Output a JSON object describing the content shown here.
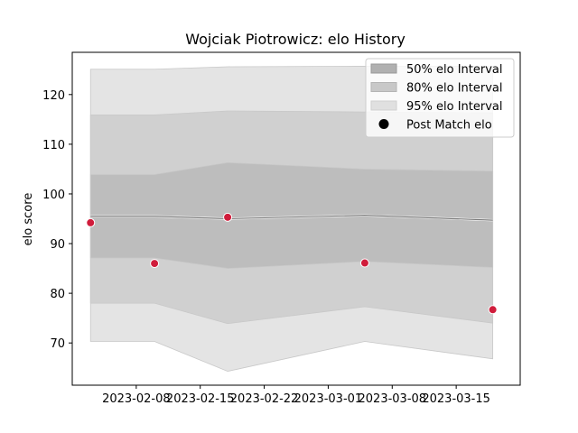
{
  "chart_data": {
    "type": "line",
    "title": "Wojciak Piotrowicz: elo History",
    "xlabel": "",
    "ylabel": "elo score",
    "x_ticks": [
      "2023-02-08",
      "2023-02-15",
      "2023-02-22",
      "2023-03-01",
      "2023-03-08",
      "2023-03-15"
    ],
    "y_ticks": [
      70,
      80,
      90,
      100,
      110,
      120
    ],
    "xlim": [
      "2023-02-01",
      "2023-03-22"
    ],
    "ylim": [
      61.5,
      128.5
    ],
    "x": [
      "2023-02-03",
      "2023-02-10",
      "2023-02-18",
      "2023-03-05",
      "2023-03-19"
    ],
    "mean": [
      95.5,
      95.5,
      95.0,
      95.7,
      94.7
    ],
    "bands": [
      {
        "name": "95% elo Interval",
        "lower": [
          70.3,
          70.3,
          64.3,
          70.3,
          66.8
        ],
        "upper": [
          125.1,
          125.1,
          125.6,
          125.7,
          125.7
        ],
        "color": "#e4e4e4"
      },
      {
        "name": "80% elo Interval",
        "lower": [
          78.0,
          78.0,
          73.9,
          77.3,
          74.0
        ],
        "upper": [
          115.9,
          115.9,
          116.7,
          116.5,
          116.3
        ],
        "color": "#d0d0d0"
      },
      {
        "name": "50% elo Interval",
        "lower": [
          87.1,
          87.1,
          85.0,
          86.4,
          85.2
        ],
        "upper": [
          103.9,
          103.9,
          106.3,
          105.0,
          104.6
        ],
        "color": "#bdbdbd"
      }
    ],
    "points": {
      "name": "Post Match elo",
      "values": [
        94.2,
        86.0,
        95.3,
        86.1,
        76.7
      ],
      "color": "#d01c3b"
    },
    "legend_position": "top-right",
    "legend": [
      "50% elo Interval",
      "80% elo Interval",
      "95% elo Interval",
      "Post Match elo"
    ],
    "grid": false
  }
}
